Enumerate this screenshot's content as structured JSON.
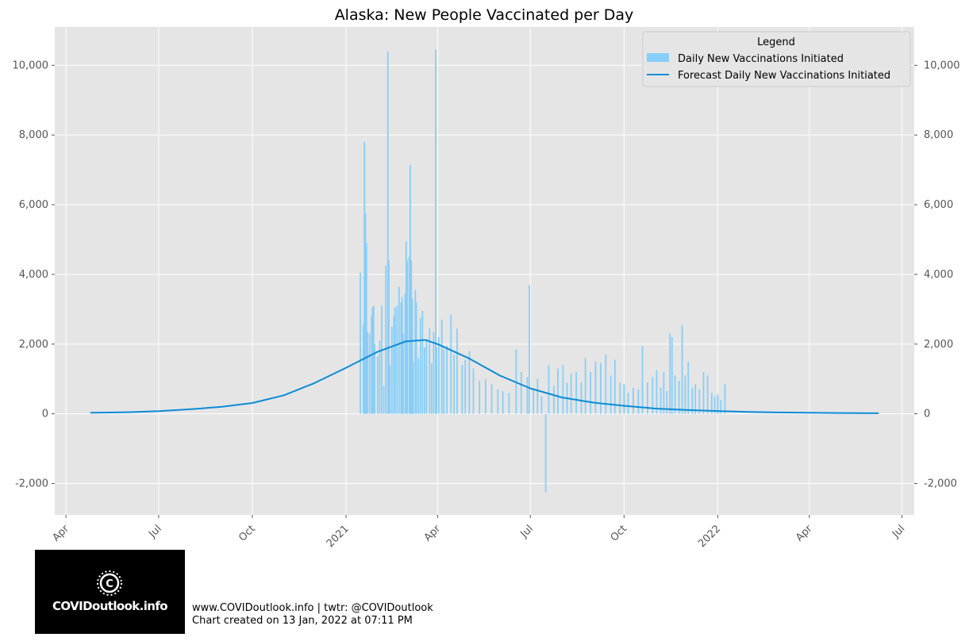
{
  "chart_data": {
    "type": "bar",
    "title": "Alaska: New People Vaccinated per Day",
    "xlabel": "",
    "ylabel": "",
    "x_range": [
      "2020-03-21",
      "2022-07-13"
    ],
    "ylim": [
      -2900,
      11100
    ],
    "y_ticks": [
      -2000,
      0,
      2000,
      4000,
      6000,
      8000,
      10000
    ],
    "y_tick_labels": [
      "-2,000",
      "0",
      "2,000",
      "4,000",
      "6,000",
      "8,000",
      "10,000"
    ],
    "x_ticks": [
      {
        "date": "2020-04-01",
        "label": "Apr"
      },
      {
        "date": "2020-07-01",
        "label": "Jul"
      },
      {
        "date": "2020-10-01",
        "label": "Oct"
      },
      {
        "date": "2021-01-01",
        "label": "2021"
      },
      {
        "date": "2021-04-01",
        "label": "Apr"
      },
      {
        "date": "2021-07-01",
        "label": "Jul"
      },
      {
        "date": "2021-10-01",
        "label": "Oct"
      },
      {
        "date": "2022-01-01",
        "label": "2022"
      },
      {
        "date": "2022-04-01",
        "label": "Apr"
      },
      {
        "date": "2022-07-01",
        "label": "Jul"
      }
    ],
    "grid": true,
    "legend_position": "top-right",
    "legend_title": "Legend",
    "colors": {
      "bars": "#87cefa",
      "forecast": "#0a8bd6",
      "background": "#e5e5e5",
      "grid": "#ffffff"
    },
    "series": [
      {
        "name": "Daily New Vaccinations Initiated",
        "kind": "bar",
        "points": [
          [
            "2021-01-15",
            4050
          ],
          [
            "2021-01-18",
            2550
          ],
          [
            "2021-01-19",
            7800
          ],
          [
            "2021-01-20",
            5750
          ],
          [
            "2021-01-21",
            4900
          ],
          [
            "2021-01-22",
            2350
          ],
          [
            "2021-01-24",
            2300
          ],
          [
            "2021-01-26",
            2800
          ],
          [
            "2021-01-27",
            3050
          ],
          [
            "2021-01-28",
            3100
          ],
          [
            "2021-01-29",
            2000
          ],
          [
            "2021-02-01",
            1650
          ],
          [
            "2021-02-03",
            2100
          ],
          [
            "2021-02-05",
            3100
          ],
          [
            "2021-02-07",
            800
          ],
          [
            "2021-02-09",
            4250
          ],
          [
            "2021-02-11",
            10400
          ],
          [
            "2021-02-12",
            4400
          ],
          [
            "2021-02-13",
            1400
          ],
          [
            "2021-02-15",
            2500
          ],
          [
            "2021-02-17",
            2800
          ],
          [
            "2021-02-18",
            3050
          ],
          [
            "2021-02-20",
            3100
          ],
          [
            "2021-02-22",
            3650
          ],
          [
            "2021-02-24",
            3200
          ],
          [
            "2021-02-25",
            3350
          ],
          [
            "2021-02-26",
            2300
          ],
          [
            "2021-02-28",
            3450
          ],
          [
            "2021-03-01",
            4950
          ],
          [
            "2021-03-02",
            4400
          ],
          [
            "2021-03-04",
            4500
          ],
          [
            "2021-03-05",
            7150
          ],
          [
            "2021-03-06",
            4400
          ],
          [
            "2021-03-07",
            3300
          ],
          [
            "2021-03-08",
            1500
          ],
          [
            "2021-03-10",
            3550
          ],
          [
            "2021-03-11",
            3200
          ],
          [
            "2021-03-13",
            1600
          ],
          [
            "2021-03-15",
            2750
          ],
          [
            "2021-03-17",
            2950
          ],
          [
            "2021-03-19",
            1900
          ],
          [
            "2021-03-21",
            2100
          ],
          [
            "2021-03-24",
            2450
          ],
          [
            "2021-03-26",
            1450
          ],
          [
            "2021-03-28",
            2350
          ],
          [
            "2021-03-30",
            10450
          ],
          [
            "2021-03-31",
            1900
          ],
          [
            "2021-04-02",
            2200
          ],
          [
            "2021-04-05",
            2700
          ],
          [
            "2021-04-07",
            1850
          ],
          [
            "2021-04-10",
            1950
          ],
          [
            "2021-04-14",
            2850
          ],
          [
            "2021-04-17",
            1700
          ],
          [
            "2021-04-20",
            2450
          ],
          [
            "2021-04-25",
            1400
          ],
          [
            "2021-04-28",
            1550
          ],
          [
            "2021-05-02",
            1800
          ],
          [
            "2021-05-06",
            1300
          ],
          [
            "2021-05-12",
            950
          ],
          [
            "2021-05-18",
            1000
          ],
          [
            "2021-05-24",
            850
          ],
          [
            "2021-05-30",
            700
          ],
          [
            "2021-06-04",
            650
          ],
          [
            "2021-06-10",
            600
          ],
          [
            "2021-06-17",
            1850
          ],
          [
            "2021-06-22",
            1200
          ],
          [
            "2021-06-28",
            1050
          ],
          [
            "2021-06-30",
            3700
          ],
          [
            "2021-07-04",
            700
          ],
          [
            "2021-07-08",
            1000
          ],
          [
            "2021-07-12",
            500
          ],
          [
            "2021-07-16",
            -2250
          ],
          [
            "2021-07-19",
            1400
          ],
          [
            "2021-07-24",
            800
          ],
          [
            "2021-07-28",
            1300
          ],
          [
            "2021-08-02",
            1400
          ],
          [
            "2021-08-06",
            900
          ],
          [
            "2021-08-10",
            1150
          ],
          [
            "2021-08-15",
            1200
          ],
          [
            "2021-08-20",
            900
          ],
          [
            "2021-08-24",
            1600
          ],
          [
            "2021-08-29",
            1200
          ],
          [
            "2021-09-03",
            1500
          ],
          [
            "2021-09-08",
            1450
          ],
          [
            "2021-09-13",
            1700
          ],
          [
            "2021-09-18",
            1100
          ],
          [
            "2021-09-22",
            1550
          ],
          [
            "2021-09-27",
            900
          ],
          [
            "2021-10-01",
            850
          ],
          [
            "2021-10-05",
            600
          ],
          [
            "2021-10-10",
            750
          ],
          [
            "2021-10-15",
            700
          ],
          [
            "2021-10-19",
            1950
          ],
          [
            "2021-10-24",
            900
          ],
          [
            "2021-10-29",
            1050
          ],
          [
            "2021-11-02",
            1250
          ],
          [
            "2021-11-06",
            750
          ],
          [
            "2021-11-09",
            1200
          ],
          [
            "2021-11-12",
            650
          ],
          [
            "2021-11-15",
            2300
          ],
          [
            "2021-11-17",
            2200
          ],
          [
            "2021-11-20",
            1100
          ],
          [
            "2021-11-24",
            950
          ],
          [
            "2021-11-27",
            2550
          ],
          [
            "2021-11-30",
            1100
          ],
          [
            "2021-12-03",
            1500
          ],
          [
            "2021-12-07",
            750
          ],
          [
            "2021-12-10",
            850
          ],
          [
            "2021-12-14",
            700
          ],
          [
            "2021-12-18",
            1200
          ],
          [
            "2021-12-22",
            1100
          ],
          [
            "2021-12-26",
            600
          ],
          [
            "2021-12-29",
            500
          ],
          [
            "2022-01-01",
            550
          ],
          [
            "2022-01-04",
            400
          ],
          [
            "2022-01-08",
            850
          ]
        ]
      },
      {
        "name": "Forecast Daily New Vaccinations Initiated",
        "kind": "line",
        "points": [
          [
            "2020-04-25",
            30
          ],
          [
            "2020-06-01",
            45
          ],
          [
            "2020-07-01",
            75
          ],
          [
            "2020-08-01",
            130
          ],
          [
            "2020-09-01",
            200
          ],
          [
            "2020-10-01",
            310
          ],
          [
            "2020-11-01",
            530
          ],
          [
            "2020-12-01",
            880
          ],
          [
            "2021-01-01",
            1320
          ],
          [
            "2021-02-01",
            1780
          ],
          [
            "2021-03-01",
            2080
          ],
          [
            "2021-03-20",
            2120
          ],
          [
            "2021-04-01",
            2000
          ],
          [
            "2021-05-01",
            1600
          ],
          [
            "2021-06-01",
            1100
          ],
          [
            "2021-07-01",
            730
          ],
          [
            "2021-08-01",
            470
          ],
          [
            "2021-09-01",
            320
          ],
          [
            "2021-10-01",
            230
          ],
          [
            "2021-11-01",
            150
          ],
          [
            "2021-12-01",
            110
          ],
          [
            "2022-01-01",
            80
          ],
          [
            "2022-02-01",
            55
          ],
          [
            "2022-03-01",
            40
          ],
          [
            "2022-04-01",
            30
          ],
          [
            "2022-05-01",
            22
          ],
          [
            "2022-06-08",
            15
          ]
        ]
      }
    ]
  },
  "footer": {
    "logo_text": "COVIDoutlook.info",
    "credit_line1": "www.COVIDoutlook.info | twtr: @COVIDoutlook",
    "credit_line2": "Chart created on 13 Jan, 2022 at 07:11 PM"
  }
}
